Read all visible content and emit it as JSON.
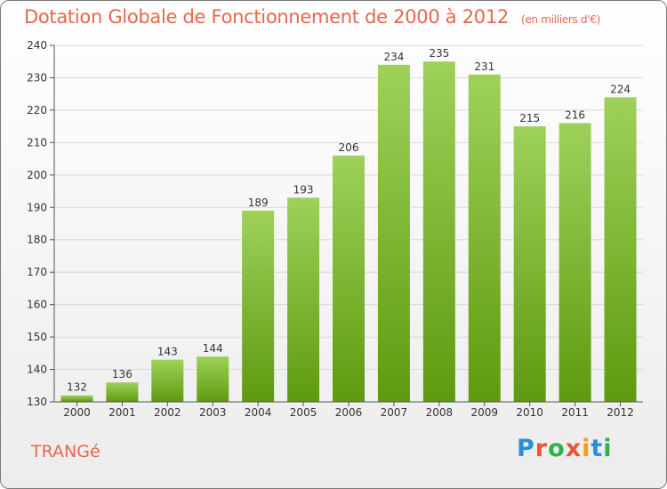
{
  "title": "Dotation Globale de Fonctionnement de 2000 à 2012",
  "unit": "(en milliers d'€)",
  "commune": "TRANGé",
  "logo": {
    "text": "Proxiti",
    "letter_colors": [
      "#2b8fd6",
      "#e8563a",
      "#2db34a",
      "#e8563a",
      "#f2a007",
      "#2b8fd6",
      "#2db34a"
    ]
  },
  "colors": {
    "bar_top": "#9fd15a",
    "bar_bottom": "#5e9a0f",
    "title": "#e8674a",
    "grid": "#d8d8d8",
    "axis": "#555555"
  },
  "chart_data": {
    "type": "bar",
    "categories": [
      "2000",
      "2001",
      "2002",
      "2003",
      "2004",
      "2005",
      "2006",
      "2007",
      "2008",
      "2009",
      "2010",
      "2011",
      "2012"
    ],
    "values": [
      132,
      136,
      143,
      144,
      189,
      193,
      206,
      234,
      235,
      231,
      215,
      216,
      224
    ],
    "ylim": [
      130,
      240
    ],
    "yticks": [
      130,
      140,
      150,
      160,
      170,
      180,
      190,
      200,
      210,
      220,
      230,
      240
    ],
    "grid": true,
    "xlabel": "",
    "ylabel": ""
  }
}
